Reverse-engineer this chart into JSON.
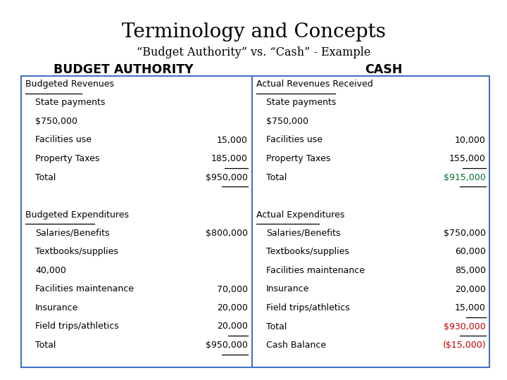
{
  "title": "Terminology and Concepts",
  "subtitle": "“Budget Authority” vs. “Cash” - Example",
  "left_header": "BUDGET AUTHORITY",
  "right_header": "CASH",
  "bg_color": "#ffffff",
  "box_border_color": "#4472C4",
  "left_col": [
    {
      "text": "Budgeted Revenues",
      "indent": 0,
      "underline": true,
      "value": "",
      "value_underline": false,
      "color": "#000000",
      "value_color": "#000000"
    },
    {
      "text": "State payments",
      "indent": 1,
      "underline": false,
      "value": "",
      "value_underline": false,
      "color": "#000000",
      "value_color": "#000000"
    },
    {
      "text": "$750,000",
      "indent": 1,
      "underline": false,
      "value": "",
      "value_underline": false,
      "color": "#000000",
      "value_color": "#000000"
    },
    {
      "text": "Facilities use",
      "indent": 1,
      "underline": false,
      "value": "15,000",
      "value_underline": false,
      "color": "#000000",
      "value_color": "#000000"
    },
    {
      "text": "Property Taxes",
      "indent": 1,
      "underline": false,
      "value": "185,000",
      "value_underline": true,
      "color": "#000000",
      "value_color": "#000000"
    },
    {
      "text": "Total",
      "indent": 1,
      "underline": false,
      "value": "$950,000",
      "value_underline": true,
      "color": "#000000",
      "value_color": "#000000"
    },
    {
      "text": "",
      "indent": 0,
      "underline": false,
      "value": "",
      "value_underline": false,
      "color": "#000000",
      "value_color": "#000000"
    },
    {
      "text": "Budgeted Expenditures",
      "indent": 0,
      "underline": true,
      "value": "",
      "value_underline": false,
      "color": "#000000",
      "value_color": "#000000"
    },
    {
      "text": "Salaries/Benefits",
      "indent": 1,
      "underline": false,
      "value": "$800,000",
      "value_underline": false,
      "color": "#000000",
      "value_color": "#000000"
    },
    {
      "text": "Textbooks/supplies",
      "indent": 1,
      "underline": false,
      "value": "",
      "value_underline": false,
      "color": "#000000",
      "value_color": "#000000"
    },
    {
      "text": "40,000",
      "indent": 1,
      "underline": false,
      "value": "",
      "value_underline": false,
      "color": "#000000",
      "value_color": "#000000"
    },
    {
      "text": "Facilities maintenance",
      "indent": 1,
      "underline": false,
      "value": "70,000",
      "value_underline": false,
      "color": "#000000",
      "value_color": "#000000"
    },
    {
      "text": "Insurance",
      "indent": 1,
      "underline": false,
      "value": "20,000",
      "value_underline": false,
      "color": "#000000",
      "value_color": "#000000"
    },
    {
      "text": "Field trips/athletics",
      "indent": 1,
      "underline": false,
      "value": "20,000",
      "value_underline": true,
      "color": "#000000",
      "value_color": "#000000"
    },
    {
      "text": "Total",
      "indent": 1,
      "underline": false,
      "value": "$950,000",
      "value_underline": true,
      "color": "#000000",
      "value_color": "#000000"
    }
  ],
  "right_col": [
    {
      "text": "Actual Revenues Received",
      "indent": 0,
      "underline": true,
      "value": "",
      "value_underline": false,
      "color": "#000000",
      "value_color": "#000000"
    },
    {
      "text": "State payments",
      "indent": 1,
      "underline": false,
      "value": "",
      "value_underline": false,
      "color": "#000000",
      "value_color": "#000000"
    },
    {
      "text": "$750,000",
      "indent": 1,
      "underline": false,
      "value": "",
      "value_underline": false,
      "color": "#000000",
      "value_color": "#000000"
    },
    {
      "text": "Facilities use",
      "indent": 1,
      "underline": false,
      "value": "10,000",
      "value_underline": false,
      "color": "#000000",
      "value_color": "#000000"
    },
    {
      "text": "Property Taxes",
      "indent": 1,
      "underline": false,
      "value": "155,000",
      "value_underline": true,
      "color": "#000000",
      "value_color": "#000000"
    },
    {
      "text": "Total",
      "indent": 1,
      "underline": false,
      "value": "$915,000",
      "value_underline": true,
      "color": "#000000",
      "value_color": "#007030"
    },
    {
      "text": "",
      "indent": 0,
      "underline": false,
      "value": "",
      "value_underline": false,
      "color": "#000000",
      "value_color": "#000000"
    },
    {
      "text": "Actual Expenditures",
      "indent": 0,
      "underline": true,
      "value": "",
      "value_underline": false,
      "color": "#000000",
      "value_color": "#000000"
    },
    {
      "text": "Salaries/Benefits",
      "indent": 1,
      "underline": false,
      "value": "$750,000",
      "value_underline": false,
      "color": "#000000",
      "value_color": "#000000"
    },
    {
      "text": "Textbooks/supplies",
      "indent": 1,
      "underline": false,
      "value": "60,000",
      "value_underline": false,
      "color": "#000000",
      "value_color": "#000000"
    },
    {
      "text": "Facilities maintenance",
      "indent": 1,
      "underline": false,
      "value": "85,000",
      "value_underline": false,
      "color": "#000000",
      "value_color": "#000000"
    },
    {
      "text": "Insurance",
      "indent": 1,
      "underline": false,
      "value": "20,000",
      "value_underline": false,
      "color": "#000000",
      "value_color": "#000000"
    },
    {
      "text": "Field trips/athletics",
      "indent": 1,
      "underline": false,
      "value": "15,000",
      "value_underline": true,
      "color": "#000000",
      "value_color": "#000000"
    },
    {
      "text": "Total",
      "indent": 1,
      "underline": false,
      "value": "$930,000",
      "value_underline": true,
      "color": "#000000",
      "value_color": "#C00000"
    },
    {
      "text": "Cash Balance",
      "indent": 1,
      "underline": false,
      "value": "($15,000)",
      "value_underline": false,
      "color": "#000000",
      "value_color": "#C00000"
    }
  ],
  "font_size": 9.0,
  "title_font_size": 20,
  "subtitle_font_size": 11.5,
  "header_font_size": 12.5
}
